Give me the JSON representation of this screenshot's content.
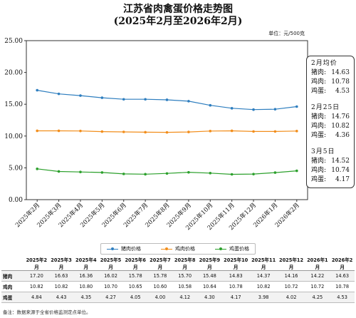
{
  "title_line1": "江苏省肉禽蛋价格走势图",
  "title_line2": "(2025年2月至2026年2月)",
  "unit": "单位：元/500克",
  "chart_data": {
    "type": "line",
    "categories": [
      "2025年2月",
      "2025年3月",
      "2025年4月",
      "2025年5月",
      "2025年6月",
      "2025年7月",
      "2025年8月",
      "2025年9月",
      "2025年10月",
      "2025年11月",
      "2025年12月",
      "2026年1月",
      "2026年2月"
    ],
    "ylim": [
      0,
      25
    ],
    "yticks": [
      "0.00",
      "5.00",
      "10.00",
      "15.00",
      "20.00",
      "25.00"
    ],
    "grid": false,
    "legend_placement": "bottom",
    "series": [
      {
        "name": "猪肉价格",
        "color": "#2e7ebf",
        "values": [
          17.2,
          16.63,
          16.36,
          16.02,
          15.78,
          15.78,
          15.7,
          15.48,
          14.83,
          14.37,
          14.16,
          14.22,
          14.63
        ]
      },
      {
        "name": "鸡肉价格",
        "color": "#f28e1c",
        "values": [
          10.82,
          10.82,
          10.8,
          10.7,
          10.65,
          10.6,
          10.58,
          10.64,
          10.78,
          10.82,
          10.72,
          10.72,
          10.78
        ]
      },
      {
        "name": "鸡蛋价格",
        "color": "#2ca02c",
        "values": [
          4.84,
          4.43,
          4.35,
          4.27,
          4.05,
          4.0,
          4.12,
          4.3,
          4.17,
          3.98,
          4.02,
          4.25,
          4.53
        ]
      }
    ]
  },
  "side_boxes": [
    {
      "header": "2月均价",
      "rows": [
        {
          "label": "猪肉:",
          "value": "14.63"
        },
        {
          "label": "鸡肉:",
          "value": "10.78"
        },
        {
          "label": "鸡蛋:",
          "value": "4.53"
        }
      ]
    },
    {
      "header": "2月25日",
      "rows": [
        {
          "label": "猪肉:",
          "value": "14.76"
        },
        {
          "label": "鸡肉:",
          "value": "10.82"
        },
        {
          "label": "鸡蛋:",
          "value": "4.36"
        }
      ]
    },
    {
      "header": "3月5日",
      "rows": [
        {
          "label": "猪肉:",
          "value": "14.52"
        },
        {
          "label": "鸡肉:",
          "value": "10.74"
        },
        {
          "label": "鸡蛋:",
          "value": "4.17"
        }
      ]
    }
  ],
  "table": {
    "row_labels": [
      "猪肉",
      "鸡肉",
      "鸡蛋"
    ],
    "rows": [
      [
        "17.20",
        "16.63",
        "16.36",
        "16.02",
        "15.78",
        "15.78",
        "15.70",
        "15.48",
        "14.83",
        "14.37",
        "14.16",
        "14.22",
        "14.63"
      ],
      [
        "10.82",
        "10.82",
        "10.80",
        "10.70",
        "10.65",
        "10.60",
        "10.58",
        "10.64",
        "10.78",
        "10.82",
        "10.72",
        "10.72",
        "10.78"
      ],
      [
        "4.84",
        "4.43",
        "4.35",
        "4.27",
        "4.05",
        "4.00",
        "4.12",
        "4.30",
        "4.17",
        "3.98",
        "4.02",
        "4.25",
        "4.53"
      ]
    ]
  },
  "note": "备注：数据来源于全省价格监测定点单位。"
}
